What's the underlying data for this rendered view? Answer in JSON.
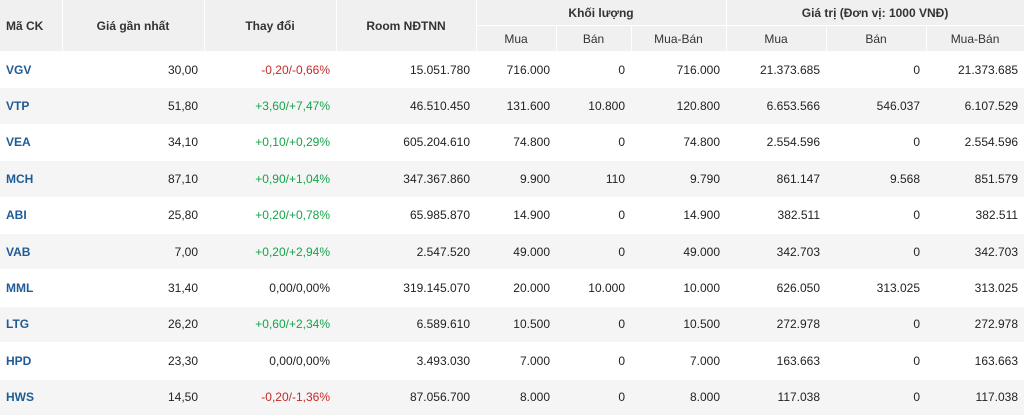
{
  "headers": {
    "code": "Mã CK",
    "last_price": "Giá gần nhất",
    "change": "Thay đổi",
    "room": "Room NĐTNN",
    "volume_group": "Khối lượng",
    "value_group": "Giá trị (Đơn vị: 1000 VNĐ)",
    "buy": "Mua",
    "sell": "Bán",
    "net": "Mua-Bán"
  },
  "colors": {
    "up": "#16a34a",
    "down": "#c62828",
    "link": "#1f5b96"
  },
  "rows": [
    {
      "code": "VGV",
      "price": "30,00",
      "change": "-0,20/-0,66%",
      "dir": "down",
      "room": "15.051.780",
      "vol_buy": "716.000",
      "vol_sell": "0",
      "vol_net": "716.000",
      "val_buy": "21.373.685",
      "val_sell": "0",
      "val_net": "21.373.685"
    },
    {
      "code": "VTP",
      "price": "51,80",
      "change": "+3,60/+7,47%",
      "dir": "up",
      "room": "46.510.450",
      "vol_buy": "131.600",
      "vol_sell": "10.800",
      "vol_net": "120.800",
      "val_buy": "6.653.566",
      "val_sell": "546.037",
      "val_net": "6.107.529"
    },
    {
      "code": "VEA",
      "price": "34,10",
      "change": "+0,10/+0,29%",
      "dir": "up",
      "room": "605.204.610",
      "vol_buy": "74.800",
      "vol_sell": "0",
      "vol_net": "74.800",
      "val_buy": "2.554.596",
      "val_sell": "0",
      "val_net": "2.554.596"
    },
    {
      "code": "MCH",
      "price": "87,10",
      "change": "+0,90/+1,04%",
      "dir": "up",
      "room": "347.367.860",
      "vol_buy": "9.900",
      "vol_sell": "110",
      "vol_net": "9.790",
      "val_buy": "861.147",
      "val_sell": "9.568",
      "val_net": "851.579"
    },
    {
      "code": "ABI",
      "price": "25,80",
      "change": "+0,20/+0,78%",
      "dir": "up",
      "room": "65.985.870",
      "vol_buy": "14.900",
      "vol_sell": "0",
      "vol_net": "14.900",
      "val_buy": "382.511",
      "val_sell": "0",
      "val_net": "382.511"
    },
    {
      "code": "VAB",
      "price": "7,00",
      "change": "+0,20/+2,94%",
      "dir": "up",
      "room": "2.547.520",
      "vol_buy": "49.000",
      "vol_sell": "0",
      "vol_net": "49.000",
      "val_buy": "342.703",
      "val_sell": "0",
      "val_net": "342.703"
    },
    {
      "code": "MML",
      "price": "31,40",
      "change": "0,00/0,00%",
      "dir": "flat",
      "room": "319.145.070",
      "vol_buy": "20.000",
      "vol_sell": "10.000",
      "vol_net": "10.000",
      "val_buy": "626.050",
      "val_sell": "313.025",
      "val_net": "313.025"
    },
    {
      "code": "LTG",
      "price": "26,20",
      "change": "+0,60/+2,34%",
      "dir": "up",
      "room": "6.589.610",
      "vol_buy": "10.500",
      "vol_sell": "0",
      "vol_net": "10.500",
      "val_buy": "272.978",
      "val_sell": "0",
      "val_net": "272.978"
    },
    {
      "code": "HPD",
      "price": "23,30",
      "change": "0,00/0,00%",
      "dir": "flat",
      "room": "3.493.030",
      "vol_buy": "7.000",
      "vol_sell": "0",
      "vol_net": "7.000",
      "val_buy": "163.663",
      "val_sell": "0",
      "val_net": "163.663"
    },
    {
      "code": "HWS",
      "price": "14,50",
      "change": "-0,20/-1,36%",
      "dir": "down",
      "room": "87.056.700",
      "vol_buy": "8.000",
      "vol_sell": "0",
      "vol_net": "8.000",
      "val_buy": "117.038",
      "val_sell": "0",
      "val_net": "117.038"
    }
  ]
}
